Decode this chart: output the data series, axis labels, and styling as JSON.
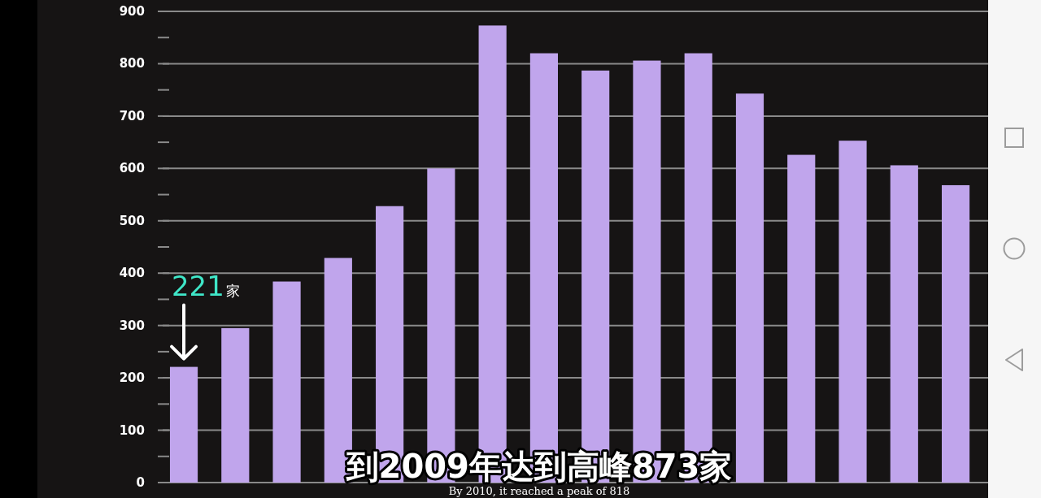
{
  "chart_data": {
    "type": "bar",
    "categories": [
      null,
      null,
      null,
      null,
      null,
      null,
      null,
      null,
      null,
      null,
      null,
      null,
      null,
      null,
      null,
      null
    ],
    "values": [
      221,
      295,
      384,
      429,
      528,
      600,
      873,
      820,
      787,
      806,
      820,
      743,
      626,
      653,
      606,
      568
    ],
    "color": "#c0a5ec",
    "value_labels": [
      "221家",
      null,
      null,
      null,
      null,
      null,
      null,
      null,
      null,
      null,
      null,
      null,
      null,
      null,
      null,
      null
    ],
    "ylim": [
      0,
      900
    ],
    "yticks": [
      0,
      {
        "value": 50,
        "label": null
      },
      100,
      {
        "value": 150,
        "label": null
      },
      200,
      {
        "value": 250,
        "label": null
      },
      300,
      {
        "value": 350,
        "label": null
      },
      400,
      {
        "value": 450,
        "label": null
      },
      500,
      {
        "value": 550,
        "label": null
      },
      600,
      {
        "value": 650,
        "label": null
      },
      700,
      {
        "value": 750,
        "label": null
      },
      800,
      {
        "value": 850,
        "label": null
      },
      900
    ],
    "grid": "y",
    "annotations": [
      "到2009年达到高峰873家",
      "By 2010, it reached a peak of 818"
    ]
  }
}
